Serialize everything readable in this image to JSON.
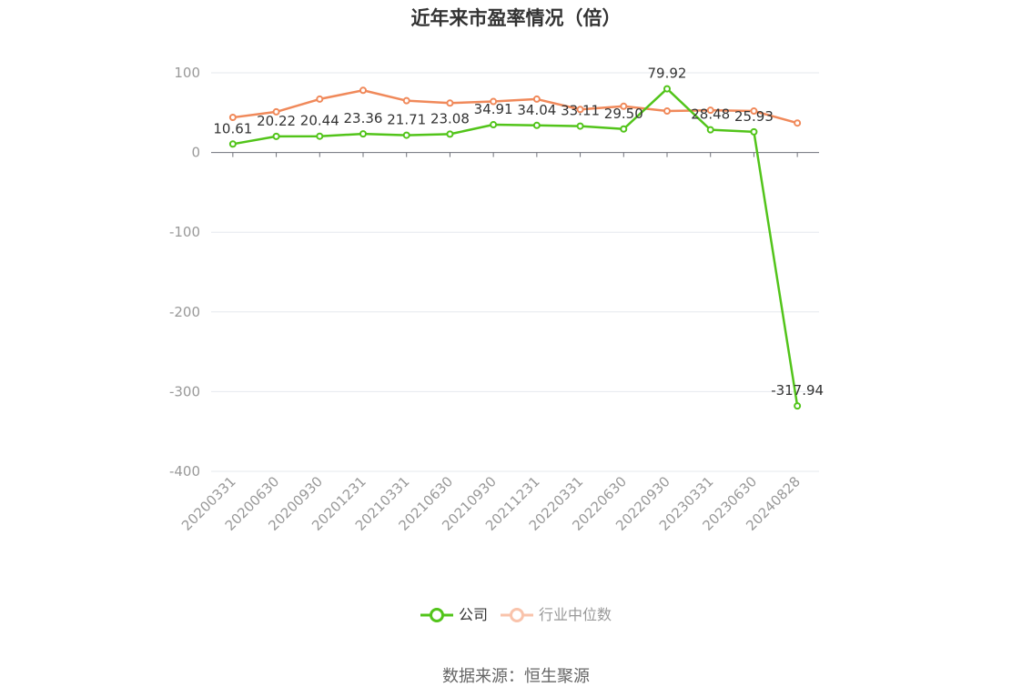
{
  "chart_data": {
    "type": "line",
    "title": "近年来市盈率情况（倍）",
    "categories": [
      "20200331",
      "20200630",
      "20200930",
      "20201231",
      "20210331",
      "20210630",
      "20210930",
      "20211231",
      "20220331",
      "20220630",
      "20220930",
      "20230331",
      "20230630",
      "20240828"
    ],
    "ylim": [
      -400,
      100
    ],
    "yticks": [
      100,
      0,
      -100,
      -200,
      -300,
      -400
    ],
    "grid": true,
    "legend_position": "bottom",
    "series": [
      {
        "name": "公司",
        "color": "#52c41a",
        "values": [
          10.61,
          20.22,
          20.44,
          23.36,
          21.71,
          23.08,
          34.91,
          34.04,
          33.11,
          29.5,
          79.92,
          28.48,
          25.93,
          -317.94
        ],
        "labels": [
          "10.61",
          "20.22",
          "20.44",
          "23.36",
          "21.71",
          "23.08",
          "34.91",
          "34.04",
          "33.11",
          "29.50",
          "79.92",
          "28.48",
          "25.93",
          "-317.94"
        ]
      },
      {
        "name": "行业中位数",
        "color": "#f0895a",
        "values": [
          44,
          51,
          67,
          78,
          65,
          62,
          64,
          67,
          54,
          58,
          52,
          53,
          52,
          37
        ]
      }
    ]
  },
  "source": "数据来源：恒生聚源"
}
